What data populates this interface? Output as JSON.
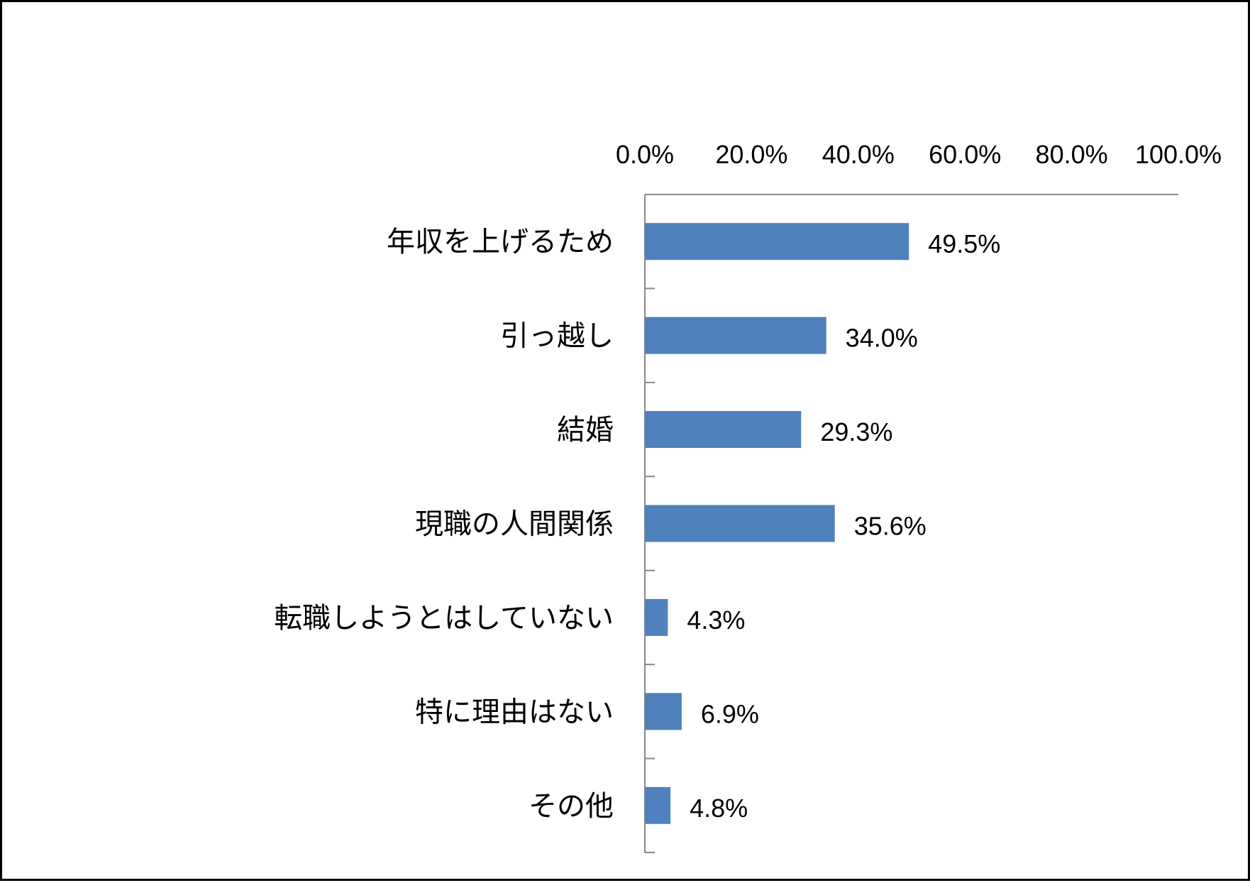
{
  "chart_data": {
    "type": "bar",
    "orientation": "horizontal",
    "title": "",
    "xlabel": "",
    "ylabel": "",
    "xlim": [
      0,
      100
    ],
    "x_ticks": [
      "0.0%",
      "20.0%",
      "40.0%",
      "60.0%",
      "80.0%",
      "100.0%"
    ],
    "x_axis_position": "top",
    "grid": false,
    "legend": "none",
    "bar_color": "#4F81BD",
    "categories": [
      "年収を上げるため",
      "引っ越し",
      "結婚",
      "現職の人間関係",
      "転職しようとはしていない",
      "特に理由はない",
      "その他"
    ],
    "values": [
      49.5,
      34.0,
      29.3,
      35.6,
      4.3,
      6.9,
      4.8
    ],
    "data_labels": [
      "49.5%",
      "34.0%",
      "29.3%",
      "35.6%",
      "4.3%",
      "6.9%",
      "4.8%"
    ]
  }
}
